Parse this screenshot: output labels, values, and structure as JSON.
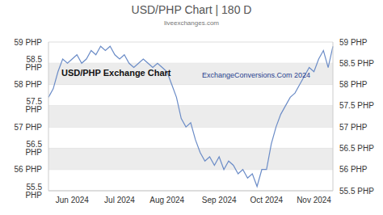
{
  "chart_data": {
    "type": "line",
    "title": "USD/PHP Chart | 180 D",
    "subtitle": "liveexchanges.com",
    "annotations": [
      "USD/PHP Exchange Chart",
      "ExchangeConversions.Com 2024"
    ],
    "categories": [
      null,
      null,
      null,
      null,
      null,
      "Jun 2024",
      null,
      null,
      null,
      null,
      null,
      null,
      null,
      null,
      null,
      "Jul 2024",
      null,
      null,
      null,
      null,
      null,
      null,
      null,
      null,
      null,
      "Aug 2024",
      null,
      null,
      null,
      null,
      null,
      null,
      null,
      null,
      null,
      null,
      "Sep 2024",
      null,
      null,
      null,
      null,
      null,
      null,
      null,
      null,
      null,
      "Oct 2024",
      null,
      null,
      null,
      null,
      null,
      null,
      null,
      null,
      null,
      "Nov 2024",
      null,
      null,
      null,
      null
    ],
    "values": [
      57.7,
      57.9,
      58.3,
      58.6,
      58.5,
      58.6,
      58.7,
      58.5,
      58.6,
      58.8,
      58.7,
      58.9,
      58.8,
      58.9,
      58.7,
      58.6,
      58.7,
      58.5,
      58.4,
      58.5,
      58.6,
      58.5,
      58.4,
      58.5,
      58.4,
      58.3,
      58.0,
      57.7,
      57.2,
      57.0,
      57.1,
      56.7,
      56.4,
      56.2,
      56.3,
      56.1,
      56.3,
      56.0,
      56.2,
      56.1,
      55.9,
      56.0,
      55.8,
      55.9,
      55.6,
      56.0,
      56.0,
      56.6,
      57.0,
      57.3,
      57.5,
      57.7,
      57.8,
      58.0,
      58.2,
      58.4,
      58.3,
      58.6,
      58.8,
      58.4,
      58.9
    ],
    "color": "#6b8cc7",
    "ylim": [
      55.5,
      59
    ],
    "yticks": [
      {
        "value": 55.5,
        "label": "55.5 PHP"
      },
      {
        "value": 56,
        "label": "56 PHP"
      },
      {
        "value": 56.5,
        "label": "56.5 PHP"
      },
      {
        "value": 57,
        "label": "57 PHP"
      },
      {
        "value": 57.5,
        "label": "57.5 PHP"
      },
      {
        "value": 58,
        "label": "58 PHP"
      },
      {
        "value": 58.5,
        "label": "58.5 PHP"
      },
      {
        "value": 59,
        "label": "59 PHP"
      }
    ],
    "grid": true
  }
}
